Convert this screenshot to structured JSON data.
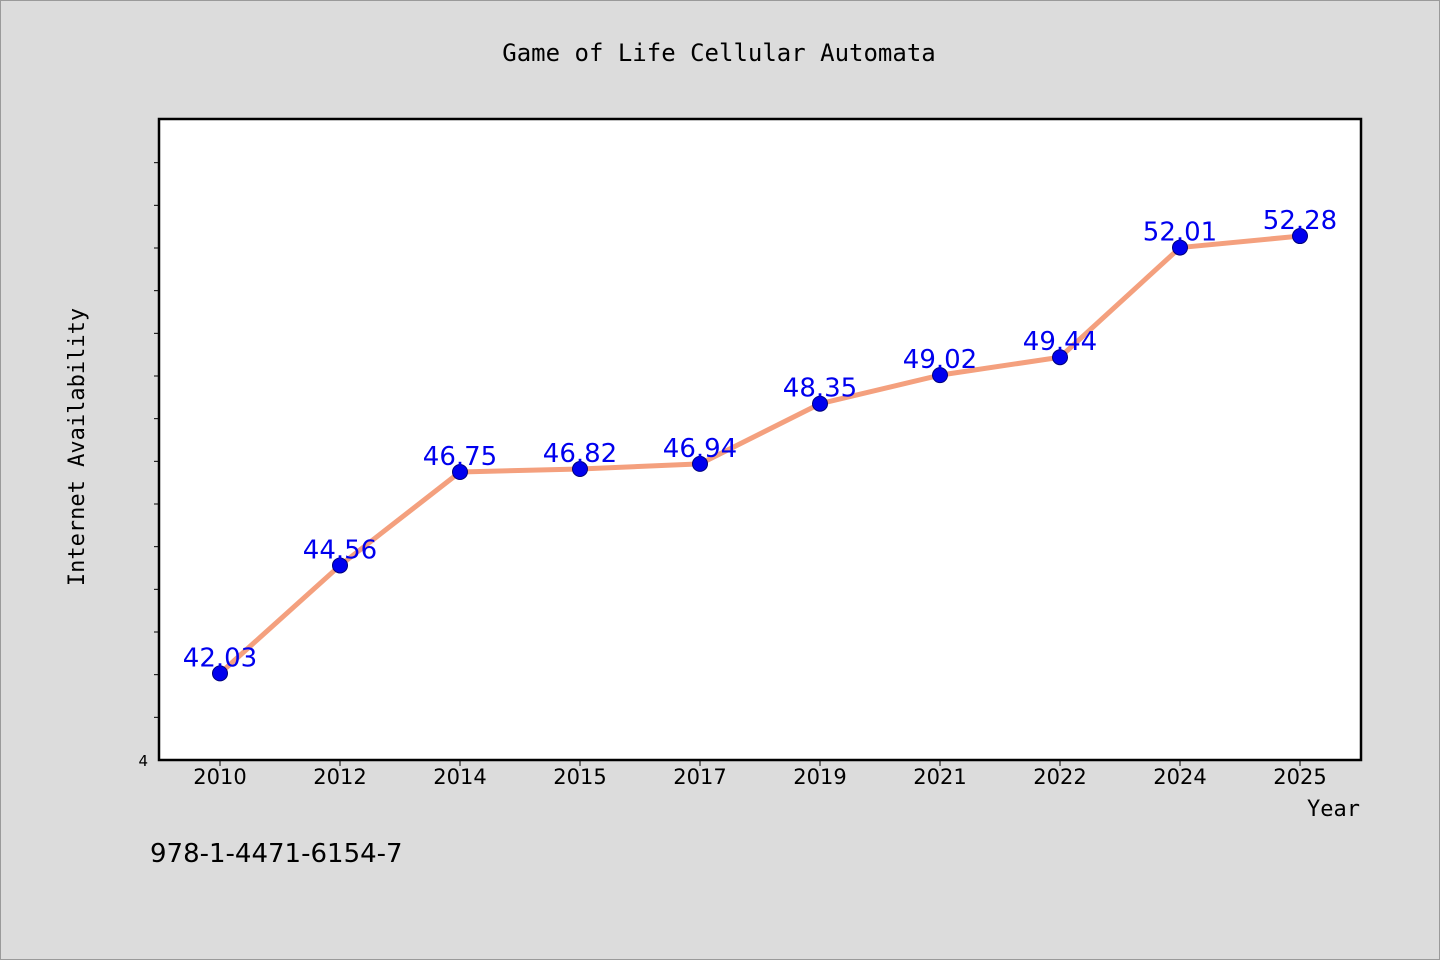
{
  "chart_data": {
    "type": "line",
    "title": "Game of Life Cellular Automata",
    "xlabel": "Year",
    "ylabel": "Internet Availability",
    "categories": [
      "2010",
      "2012",
      "2014",
      "2015",
      "2017",
      "2019",
      "2021",
      "2022",
      "2024",
      "2025"
    ],
    "series": [
      {
        "values": [
          42.03,
          44.56,
          46.75,
          46.82,
          46.94,
          48.35,
          49.02,
          49.44,
          52.01,
          52.28
        ],
        "labels": [
          "42.03",
          "44.56",
          "46.75",
          "46.82",
          "46.94",
          "48.35",
          "49.02",
          "49.44",
          "52.01",
          "52.28"
        ],
        "line_color": "#f4a07e",
        "marker_color": "#0000ee",
        "label_color": "#0000ee"
      }
    ],
    "ylim": [
      40,
      55
    ],
    "ytick_label": "4",
    "grid": false,
    "legend": "none"
  },
  "footer_text": "978-1-4471-6154-7",
  "colors": {
    "background": "#dcdcdc",
    "plot_background": "#ffffff",
    "axis": "#000000"
  }
}
